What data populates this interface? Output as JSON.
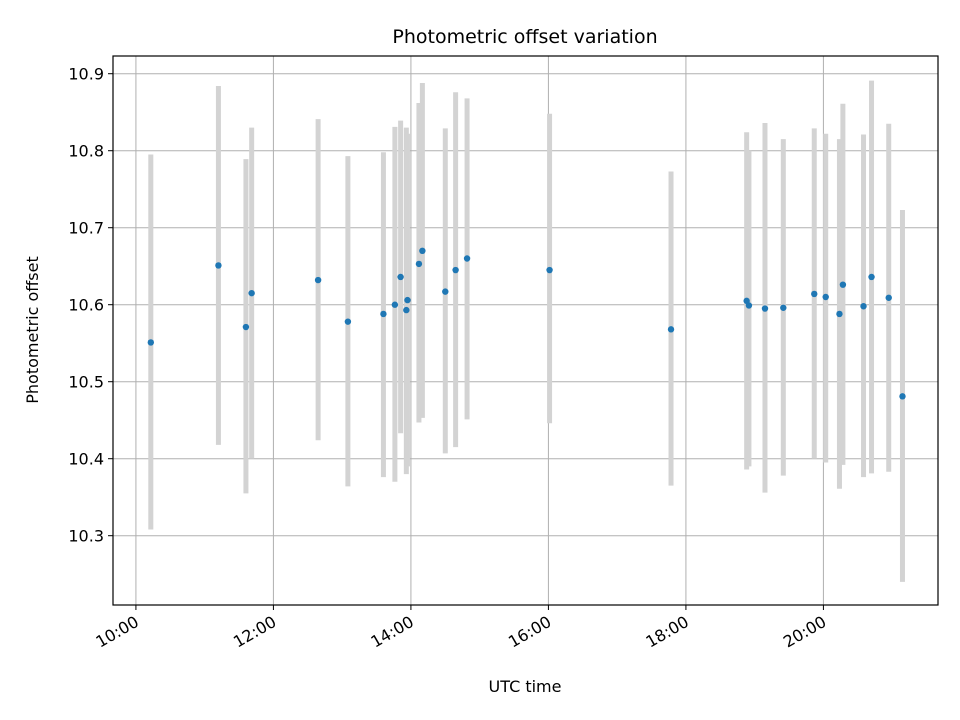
{
  "chart_data": {
    "type": "scatter",
    "title": "Photometric offset variation",
    "xlabel": "UTC time",
    "ylabel": "Photometric offset",
    "xlim": [
      "09:40",
      "21:40"
    ],
    "ylim": [
      10.21,
      10.923
    ],
    "x_ticks": [
      "10:00",
      "12:00",
      "14:00",
      "16:00",
      "18:00",
      "20:00"
    ],
    "y_ticks": [
      10.3,
      10.4,
      10.5,
      10.6,
      10.7,
      10.8,
      10.9
    ],
    "grid": true,
    "error_bar_color": "#d3d3d3",
    "marker_color": "#1f77b4",
    "points": [
      {
        "x": "10:13",
        "y": 10.551,
        "lo": 10.308,
        "hi": 10.795
      },
      {
        "x": "11:12",
        "y": 10.651,
        "lo": 10.418,
        "hi": 10.884
      },
      {
        "x": "11:36",
        "y": 10.571,
        "lo": 10.355,
        "hi": 10.789
      },
      {
        "x": "11:41",
        "y": 10.615,
        "lo": 10.4,
        "hi": 10.83
      },
      {
        "x": "12:39",
        "y": 10.632,
        "lo": 10.424,
        "hi": 10.841
      },
      {
        "x": "13:05",
        "y": 10.578,
        "lo": 10.364,
        "hi": 10.793
      },
      {
        "x": "13:36",
        "y": 10.588,
        "lo": 10.376,
        "hi": 10.798
      },
      {
        "x": "13:46",
        "y": 10.6,
        "lo": 10.37,
        "hi": 10.831
      },
      {
        "x": "13:51",
        "y": 10.636,
        "lo": 10.433,
        "hi": 10.839
      },
      {
        "x": "13:56",
        "y": 10.593,
        "lo": 10.38,
        "hi": 10.83
      },
      {
        "x": "13:57",
        "y": 10.606,
        "lo": 10.39,
        "hi": 10.822
      },
      {
        "x": "14:07",
        "y": 10.653,
        "lo": 10.447,
        "hi": 10.862
      },
      {
        "x": "14:10",
        "y": 10.67,
        "lo": 10.453,
        "hi": 10.888
      },
      {
        "x": "14:30",
        "y": 10.617,
        "lo": 10.407,
        "hi": 10.829
      },
      {
        "x": "14:39",
        "y": 10.645,
        "lo": 10.415,
        "hi": 10.876
      },
      {
        "x": "14:49",
        "y": 10.66,
        "lo": 10.451,
        "hi": 10.868
      },
      {
        "x": "16:01",
        "y": 10.645,
        "lo": 10.446,
        "hi": 10.848
      },
      {
        "x": "17:47",
        "y": 10.568,
        "lo": 10.365,
        "hi": 10.773
      },
      {
        "x": "18:53",
        "y": 10.605,
        "lo": 10.386,
        "hi": 10.824
      },
      {
        "x": "18:55",
        "y": 10.599,
        "lo": 10.39,
        "hi": 10.8
      },
      {
        "x": "19:09",
        "y": 10.595,
        "lo": 10.356,
        "hi": 10.836
      },
      {
        "x": "19:25",
        "y": 10.596,
        "lo": 10.378,
        "hi": 10.815
      },
      {
        "x": "19:52",
        "y": 10.614,
        "lo": 10.4,
        "hi": 10.829
      },
      {
        "x": "20:02",
        "y": 10.61,
        "lo": 10.395,
        "hi": 10.822
      },
      {
        "x": "20:14",
        "y": 10.588,
        "lo": 10.361,
        "hi": 10.815
      },
      {
        "x": "20:17",
        "y": 10.626,
        "lo": 10.392,
        "hi": 10.861
      },
      {
        "x": "20:35",
        "y": 10.598,
        "lo": 10.376,
        "hi": 10.821
      },
      {
        "x": "20:42",
        "y": 10.636,
        "lo": 10.381,
        "hi": 10.891
      },
      {
        "x": "20:57",
        "y": 10.609,
        "lo": 10.383,
        "hi": 10.835
      },
      {
        "x": "21:09",
        "y": 10.481,
        "lo": 10.24,
        "hi": 10.723
      }
    ]
  }
}
